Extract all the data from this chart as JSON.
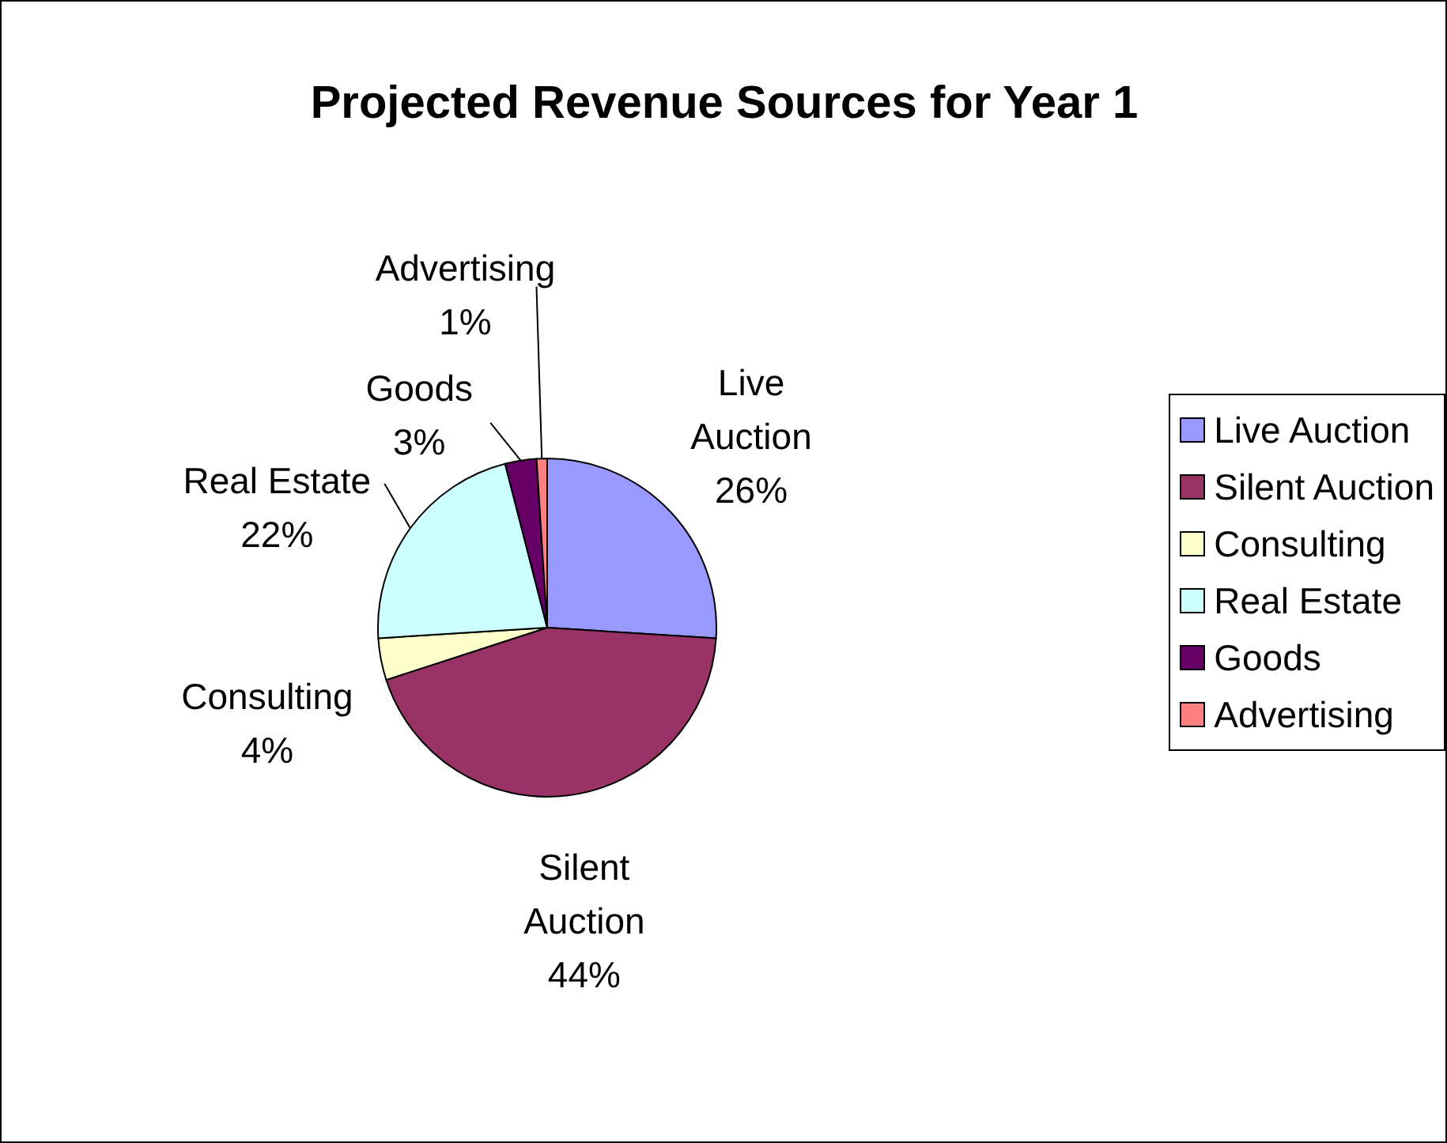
{
  "chart_data": {
    "type": "pie",
    "title": "Projected Revenue Sources for Year 1",
    "categories": [
      "Live Auction",
      "Silent Auction",
      "Consulting",
      "Real Estate",
      "Goods",
      "Advertising"
    ],
    "values": [
      26,
      44,
      4,
      22,
      3,
      1
    ],
    "value_labels": [
      "26%",
      "44%",
      "4%",
      "22%",
      "3%",
      "1%"
    ],
    "colors": [
      "#9999ff",
      "#993366",
      "#ffffcc",
      "#ccffff",
      "#660066",
      "#ff8080"
    ],
    "legend": "right"
  }
}
